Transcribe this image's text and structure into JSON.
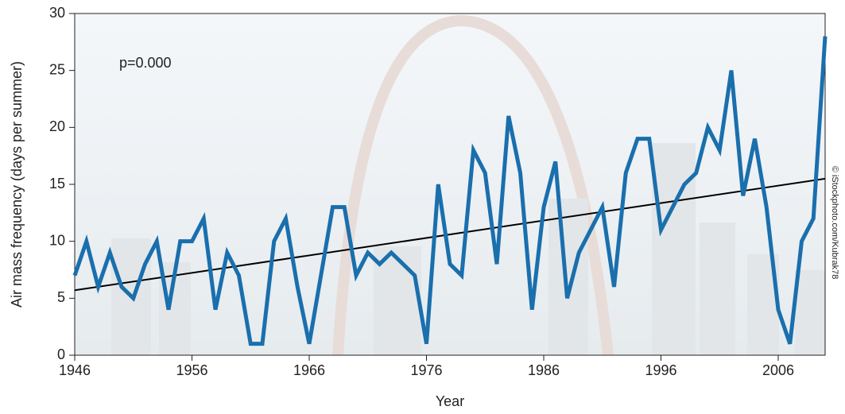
{
  "chart_data": {
    "type": "line",
    "annotation": "p=0.000",
    "credit": "© iStockphoto.com/Kubrak78",
    "xlabel": "Year",
    "ylabel": "Air mass frequency (days per summer)",
    "x": [
      1946,
      1947,
      1948,
      1949,
      1950,
      1951,
      1952,
      1953,
      1954,
      1955,
      1956,
      1957,
      1958,
      1959,
      1960,
      1961,
      1962,
      1963,
      1964,
      1965,
      1966,
      1967,
      1968,
      1969,
      1970,
      1971,
      1972,
      1973,
      1974,
      1975,
      1976,
      1977,
      1978,
      1979,
      1980,
      1981,
      1982,
      1983,
      1984,
      1985,
      1986,
      1987,
      1988,
      1989,
      1990,
      1991,
      1992,
      1993,
      1994,
      1995,
      1996,
      1997,
      1998,
      1999,
      2000,
      2001,
      2002,
      2003,
      2004,
      2005,
      2006,
      2007,
      2008,
      2009,
      2010
    ],
    "series": [
      {
        "color": "#1a6fad",
        "values": [
          7,
          10,
          6,
          9,
          6,
          5,
          8,
          10,
          4,
          10,
          10,
          12,
          4,
          9,
          7,
          1,
          1,
          10,
          12,
          6,
          1,
          7,
          13,
          13,
          7,
          9,
          8,
          9,
          8,
          7,
          1,
          15,
          8,
          7,
          18,
          16,
          8,
          21,
          16,
          4,
          13,
          17,
          5,
          9,
          11,
          13,
          6,
          16,
          19,
          19,
          11,
          13,
          15,
          16,
          20,
          18,
          25,
          14,
          19,
          13,
          4,
          1,
          10,
          12,
          28
        ]
      }
    ],
    "trend": {
      "x": [
        1946,
        2010
      ],
      "values": [
        5.7,
        15.5
      ],
      "color": "#000000"
    },
    "xlim": [
      1946,
      2010
    ],
    "xticks": [
      1946,
      1956,
      1966,
      1976,
      1986,
      1996,
      2006
    ],
    "ylim": [
      0,
      30
    ],
    "yticks": [
      0,
      5,
      10,
      15,
      20,
      25,
      30
    ]
  }
}
